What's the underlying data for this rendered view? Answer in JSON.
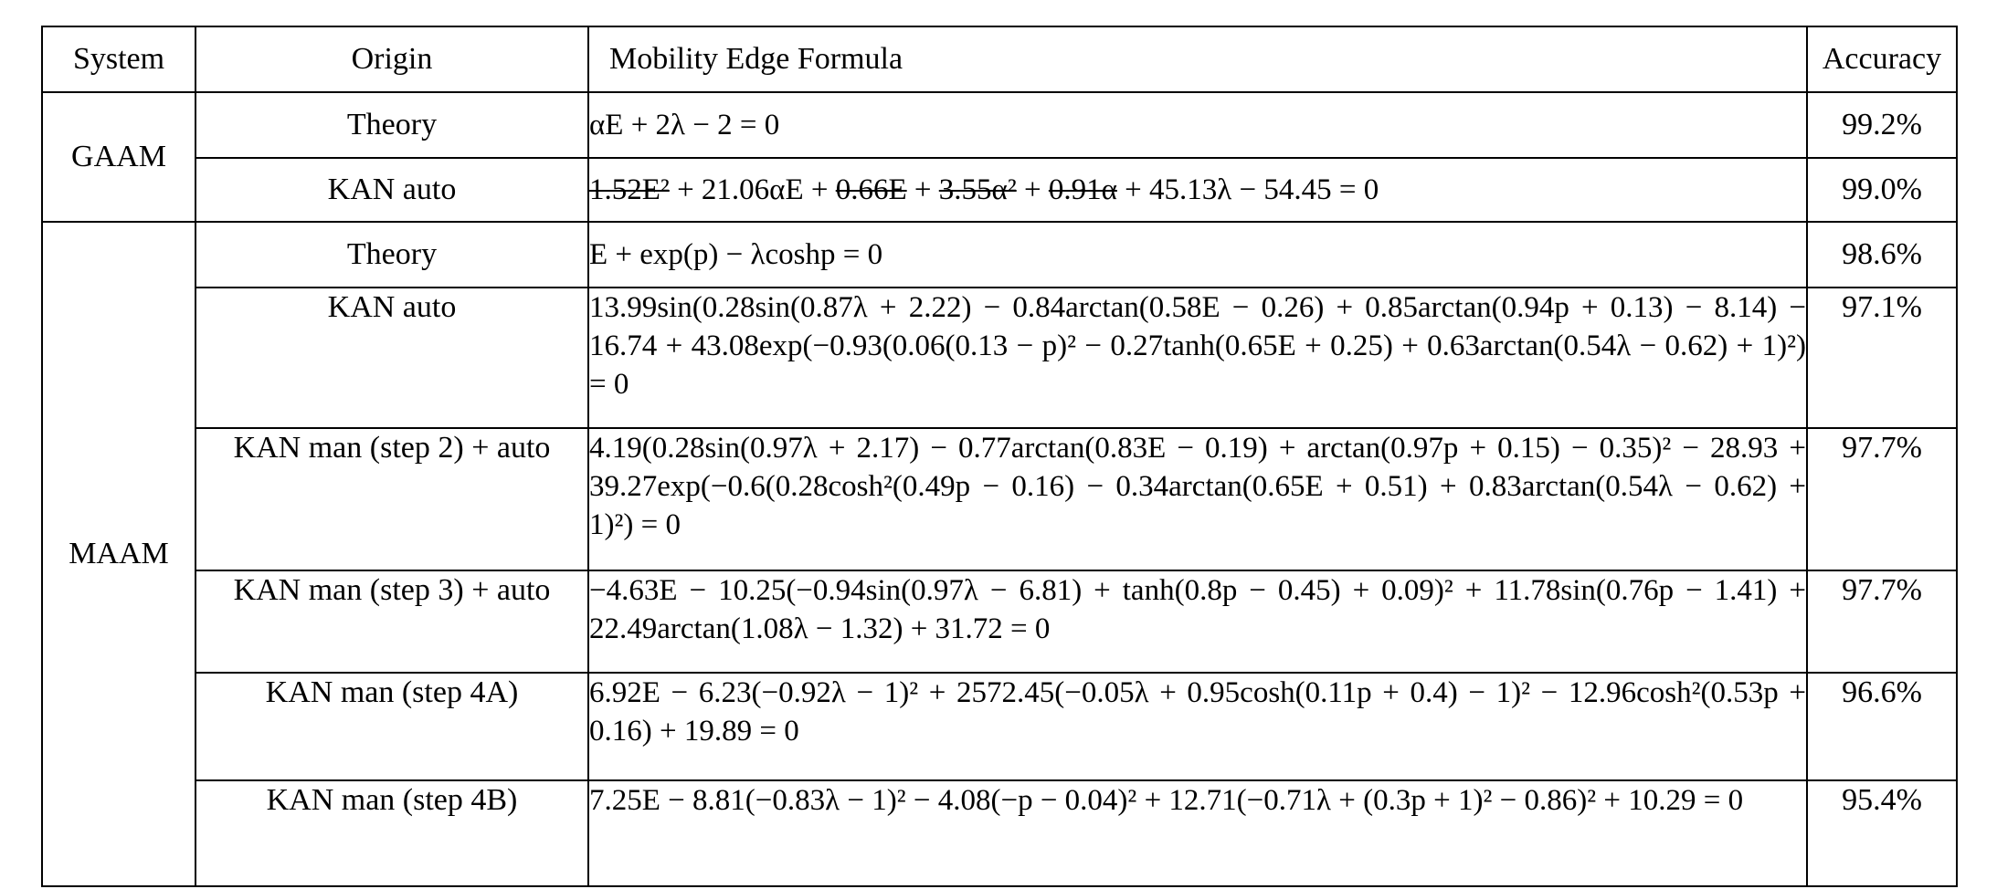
{
  "table": {
    "headers": {
      "system": "System",
      "origin": "Origin",
      "formula": "Mobility Edge Formula",
      "accuracy": "Accuracy"
    },
    "groups": {
      "gaam": "GAAM",
      "maam": "MAAM"
    },
    "rows": [
      {
        "origin": "Theory",
        "formula": "αE + 2λ − 2 = 0",
        "accuracy": "99.2%"
      },
      {
        "origin": "KAN auto",
        "formula_struck_1": "1.52E²",
        "formula_seg_1": " + 21.06αE + ",
        "formula_struck_2": "0.66E",
        "formula_seg_2": " + ",
        "formula_struck_3": "3.55α²",
        "formula_seg_3": " + ",
        "formula_struck_4": "0.91α",
        "formula_seg_4": " + 45.13λ − 54.45 = 0",
        "accuracy": "99.0%"
      },
      {
        "origin": "Theory",
        "formula": "E + exp(p) − λcoshp = 0",
        "accuracy": "98.6%"
      },
      {
        "origin": "KAN auto",
        "formula": "13.99sin(0.28sin(0.87λ + 2.22) − 0.84arctan(0.58E − 0.26) + 0.85arctan(0.94p + 0.13) − 8.14) − 16.74 + 43.08exp(−0.93(0.06(0.13 − p)² − 0.27tanh(0.65E + 0.25) + 0.63arctan(0.54λ − 0.62) + 1)²) = 0",
        "accuracy": "97.1%"
      },
      {
        "origin": "KAN man (step 2) + auto",
        "formula": "4.19(0.28sin(0.97λ + 2.17) − 0.77arctan(0.83E − 0.19) + arctan(0.97p + 0.15) − 0.35)² − 28.93 + 39.27exp(−0.6(0.28cosh²(0.49p − 0.16) − 0.34arctan(0.65E + 0.51) + 0.83arctan(0.54λ − 0.62) + 1)²) = 0",
        "accuracy": "97.7%"
      },
      {
        "origin": "KAN man (step 3) + auto",
        "formula": "−4.63E − 10.25(−0.94sin(0.97λ − 6.81) + tanh(0.8p − 0.45) + 0.09)² + 11.78sin(0.76p − 1.41) + 22.49arctan(1.08λ − 1.32) + 31.72 = 0",
        "accuracy": "97.7%"
      },
      {
        "origin": "KAN man (step 4A)",
        "formula": "6.92E − 6.23(−0.92λ − 1)² + 2572.45(−0.05λ + 0.95cosh(0.11p + 0.4) − 1)² − 12.96cosh²(0.53p + 0.16) + 19.89 = 0",
        "accuracy": "96.6%"
      },
      {
        "origin": "KAN man (step 4B)",
        "formula": "7.25E − 8.81(−0.83λ − 1)² − 4.08(−p − 0.04)² + 12.71(−0.71λ + (0.3p + 1)² − 0.86)² + 10.29 = 0",
        "accuracy": "95.4%"
      }
    ]
  }
}
